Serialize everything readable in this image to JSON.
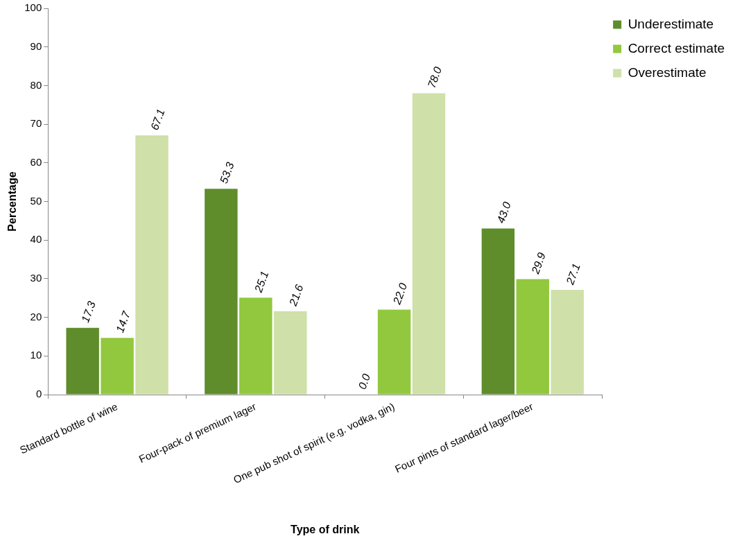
{
  "chart_data": {
    "type": "bar",
    "xlabel": "Type of drink",
    "ylabel": "Percentage",
    "categories": [
      "Standard bottle of wine",
      "Four-pack of premium lager",
      "One pub shot of spirit (e.g. vodka, gin)",
      "Four pints of standard lager/beer"
    ],
    "series": [
      {
        "name": "Underestimate",
        "color": "#5f8d2c",
        "values": [
          17.3,
          53.3,
          0.0,
          43.0
        ]
      },
      {
        "name": "Correct estimate",
        "color": "#92c83e",
        "values": [
          14.7,
          25.1,
          22.0,
          29.9
        ]
      },
      {
        "name": "Overestimate",
        "color": "#cfe0a8",
        "values": [
          67.1,
          21.6,
          78.0,
          27.1
        ]
      }
    ],
    "value_labels": [
      [
        "17.3",
        "53.3",
        "0.0",
        "43.0"
      ],
      [
        "14.7",
        "25.1",
        "22.0",
        "29.9"
      ],
      [
        "67.1",
        "21.6",
        "78.0",
        "27.1"
      ]
    ],
    "ylim": [
      0,
      100
    ],
    "yticks": [
      0,
      10,
      20,
      30,
      40,
      50,
      60,
      70,
      80,
      90,
      100
    ],
    "grid": false,
    "legend": "top right"
  }
}
